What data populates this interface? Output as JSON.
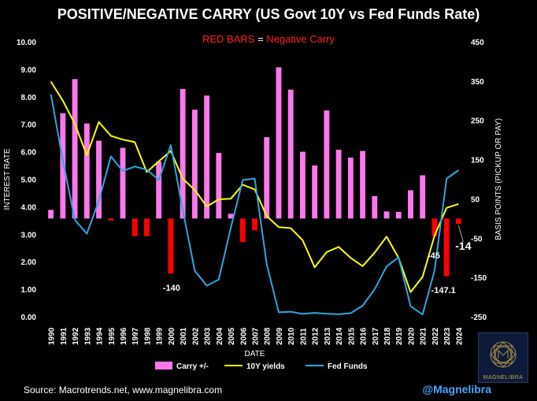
{
  "title": "POSITIVE/NEGATIVE CARRY (US Govt 10Y vs Fed Funds Rate)",
  "subtitle_red1": "RED BARS",
  "subtitle_eq": " = ",
  "subtitle_red2": "Negative Carry",
  "source": "Source: Macrotrends.net, www.magnelibra.com",
  "handle": "@Magnelibra",
  "logo_text": "MAGNELIBRA",
  "colors": {
    "positive": "#ff77ee",
    "negative": "#ff0000",
    "yields": "#ffff00",
    "fedfunds": "#29a8e0",
    "background": "#000000"
  },
  "chart_data": {
    "type": "bar+line",
    "xlabel": "DATE",
    "ylabel_left": "INTEREST RATE",
    "ylabel_right": "BASIS POINTS (PICKUP OR PAY)",
    "ylim_left": [
      0,
      10
    ],
    "ylim_right": [
      -250,
      450
    ],
    "yticks_left": [
      "0.00",
      "1.00",
      "2.00",
      "3.00",
      "4.00",
      "5.00",
      "6.00",
      "7.00",
      "8.00",
      "9.00",
      "10.00"
    ],
    "yticks_right": [
      "-250",
      "-150",
      "-50",
      "50",
      "150",
      "250",
      "350",
      "450"
    ],
    "categories": [
      "1990",
      "1991",
      "1992",
      "1993",
      "1994",
      "1995",
      "1996",
      "1997",
      "1998",
      "1999",
      "2000",
      "2001",
      "2002",
      "2003",
      "2004",
      "2005",
      "2006",
      "2007",
      "2008",
      "2009",
      "2010",
      "2011",
      "2012",
      "2013",
      "2014",
      "2015",
      "2016",
      "2017",
      "2018",
      "2019",
      "2020",
      "2021",
      "2022",
      "2023",
      "2024"
    ],
    "series": [
      {
        "name": "Carry +/-",
        "axis": "right",
        "type": "bar",
        "values": [
          22,
          268,
          355,
          242,
          198,
          -5,
          180,
          -45,
          -45,
          145,
          -140,
          330,
          277,
          313,
          167,
          12,
          -60,
          -30,
          207,
          385,
          328,
          170,
          135,
          275,
          175,
          155,
          172,
          57,
          18,
          17,
          72,
          110,
          -45,
          -147.1,
          -14
        ]
      },
      {
        "name": "10Y yields",
        "axis": "left",
        "type": "line",
        "values": [
          8.55,
          7.86,
          7.01,
          5.87,
          7.08,
          6.58,
          6.44,
          6.35,
          5.26,
          5.65,
          6.03,
          5.02,
          4.61,
          4.01,
          4.27,
          4.29,
          4.8,
          4.63,
          3.66,
          3.26,
          3.22,
          2.78,
          1.8,
          2.35,
          2.54,
          2.14,
          1.84,
          2.33,
          2.91,
          2.14,
          0.89,
          1.45,
          2.95,
          3.96,
          4.1
        ]
      },
      {
        "name": "Fed Funds",
        "axis": "left",
        "type": "line",
        "values": [
          8.1,
          5.69,
          3.52,
          3.02,
          4.21,
          5.83,
          5.3,
          5.46,
          5.35,
          4.97,
          6.24,
          3.88,
          1.67,
          1.13,
          1.35,
          3.22,
          4.97,
          5.02,
          1.92,
          0.16,
          0.18,
          0.1,
          0.14,
          0.11,
          0.09,
          0.13,
          0.4,
          1.0,
          1.83,
          2.16,
          0.38,
          0.08,
          1.68,
          5.02,
          5.33
        ]
      }
    ],
    "annotations": [
      {
        "year": "2000",
        "text": "-140"
      },
      {
        "year": "2022",
        "text": "-45"
      },
      {
        "year": "2023",
        "text": "-147.1"
      },
      {
        "year": "2024",
        "text": "-14"
      }
    ],
    "legend_position": "bottom-center",
    "grid": false
  }
}
